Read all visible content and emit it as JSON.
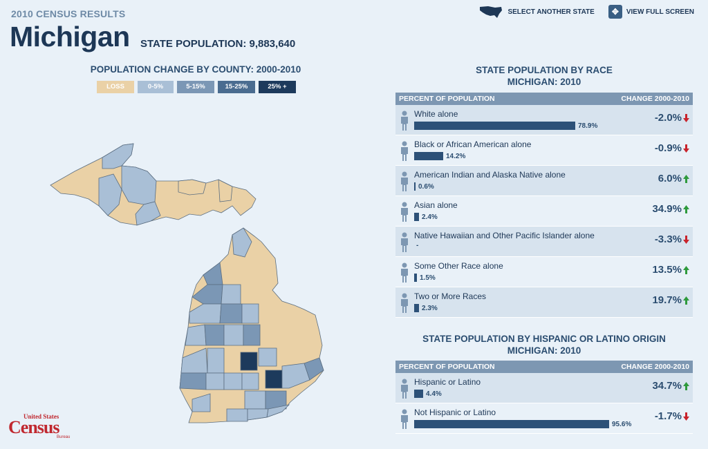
{
  "header": {
    "census_title": "2010 CENSUS RESULTS",
    "state_name": "Michigan",
    "state_population": "STATE POPULATION: 9,883,640",
    "select_state": "SELECT ANOTHER STATE",
    "full_screen": "VIEW FULL SCREEN"
  },
  "map": {
    "title": "POPULATION CHANGE BY COUNTY: 2000-2010",
    "legend": [
      "LOSS",
      "0-5%",
      "5-15%",
      "15-25%",
      "25% +"
    ],
    "colors": {
      "loss": "#ead1a6",
      "c0": "#a9bfd6",
      "c5": "#7b97b5",
      "c15": "#4a6c90",
      "c25": "#1d3a5c"
    }
  },
  "logo": {
    "small": "United States",
    "big": "Census",
    "bureau": "Bureau"
  },
  "race": {
    "title1": "STATE POPULATION BY RACE",
    "title2": "MICHIGAN: 2010",
    "col_left": "PERCENT OF POPULATION",
    "col_right": "CHANGE 2000-2010",
    "rows": [
      {
        "label": "White alone",
        "pct": 78.9,
        "pct_label": "78.9%",
        "change": "-2.0%",
        "dir": "down"
      },
      {
        "label": "Black or African American alone",
        "pct": 14.2,
        "pct_label": "14.2%",
        "change": "-0.9%",
        "dir": "down"
      },
      {
        "label": "American Indian and Alaska Native alone",
        "pct": 0.6,
        "pct_label": "0.6%",
        "change": "6.0%",
        "dir": "up"
      },
      {
        "label": "Asian alone",
        "pct": 2.4,
        "pct_label": "2.4%",
        "change": "34.9%",
        "dir": "up"
      },
      {
        "label": "Native Hawaiian and Other Pacific Islander alone",
        "pct": 0,
        "pct_label": "-",
        "change": "-3.3%",
        "dir": "down"
      },
      {
        "label": "Some Other Race alone",
        "pct": 1.5,
        "pct_label": "1.5%",
        "change": "13.5%",
        "dir": "up"
      },
      {
        "label": "Two or More Races",
        "pct": 2.3,
        "pct_label": "2.3%",
        "change": "19.7%",
        "dir": "up"
      }
    ]
  },
  "hispanic": {
    "title1": "STATE POPULATION BY HISPANIC OR LATINO ORIGIN",
    "title2": "MICHIGAN: 2010",
    "col_left": "PERCENT OF POPULATION",
    "col_right": "CHANGE 2000-2010",
    "rows": [
      {
        "label": "Hispanic or Latino",
        "pct": 4.4,
        "pct_label": "4.4%",
        "change": "34.7%",
        "dir": "up"
      },
      {
        "label": "Not Hispanic or Latino",
        "pct": 95.6,
        "pct_label": "95.6%",
        "change": "-1.7%",
        "dir": "down"
      }
    ]
  }
}
